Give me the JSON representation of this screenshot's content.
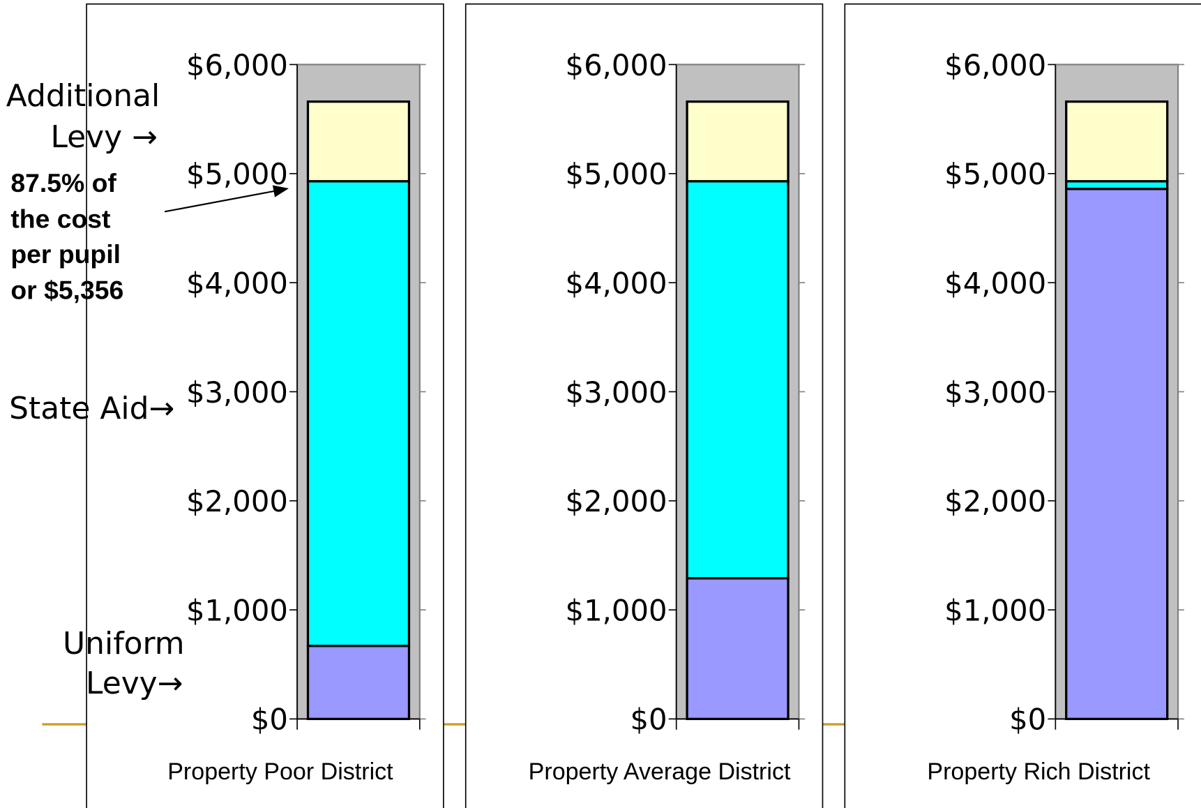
{
  "chart_data": [
    {
      "type": "bar",
      "stacked": true,
      "categories": [
        "Property Poor District"
      ],
      "series": [
        {
          "color": "#9999ff",
          "values": [
            670
          ]
        },
        {
          "color": "#00ffff",
          "values": [
            4260
          ]
        },
        {
          "color": "#ffffcc",
          "values": [
            730
          ]
        }
      ],
      "ylim": [
        0,
        6000
      ],
      "yticks": [
        {
          "value": 0,
          "label": "$0"
        },
        {
          "value": 1000,
          "label": "$1,000"
        },
        {
          "value": 2000,
          "label": "$2,000"
        },
        {
          "value": 3000,
          "label": "$3,000"
        },
        {
          "value": 4000,
          "label": "$4,000"
        },
        {
          "value": 5000,
          "label": "$5,000"
        },
        {
          "value": 6000,
          "label": "$6,000"
        }
      ]
    },
    {
      "type": "bar",
      "stacked": true,
      "categories": [
        "Property Average District"
      ],
      "series": [
        {
          "color": "#9999ff",
          "values": [
            1290
          ]
        },
        {
          "color": "#00ffff",
          "values": [
            3640
          ]
        },
        {
          "color": "#ffffcc",
          "values": [
            730
          ]
        }
      ],
      "ylim": [
        0,
        6000
      ],
      "yticks": [
        {
          "value": 0,
          "label": "$0"
        },
        {
          "value": 1000,
          "label": "$1,000"
        },
        {
          "value": 2000,
          "label": "$2,000"
        },
        {
          "value": 3000,
          "label": "$3,000"
        },
        {
          "value": 4000,
          "label": "$4,000"
        },
        {
          "value": 5000,
          "label": "$5,000"
        },
        {
          "value": 6000,
          "label": "$6,000"
        }
      ]
    },
    {
      "type": "bar",
      "stacked": true,
      "categories": [
        "Property Rich District"
      ],
      "series": [
        {
          "color": "#9999ff",
          "values": [
            4860
          ]
        },
        {
          "color": "#00ffff",
          "values": [
            70
          ]
        },
        {
          "color": "#ffffcc",
          "values": [
            730
          ]
        }
      ],
      "ylim": [
        0,
        6000
      ],
      "yticks": [
        {
          "value": 0,
          "label": "$0"
        },
        {
          "value": 1000,
          "label": "$1,000"
        },
        {
          "value": 2000,
          "label": "$2,000"
        },
        {
          "value": 3000,
          "label": "$3,000"
        },
        {
          "value": 4000,
          "label": "$4,000"
        },
        {
          "value": 5000,
          "label": "$5,000"
        },
        {
          "value": 6000,
          "label": "$6,000"
        }
      ]
    }
  ],
  "annotations": {
    "additional_levy": [
      "Additional",
      "Levy →"
    ],
    "state_aid": "State Aid→",
    "uniform_levy": [
      "Uniform",
      "Levy→"
    ],
    "note": [
      "87.5% of",
      "the cost",
      "per pupil",
      "or $5,356"
    ]
  }
}
